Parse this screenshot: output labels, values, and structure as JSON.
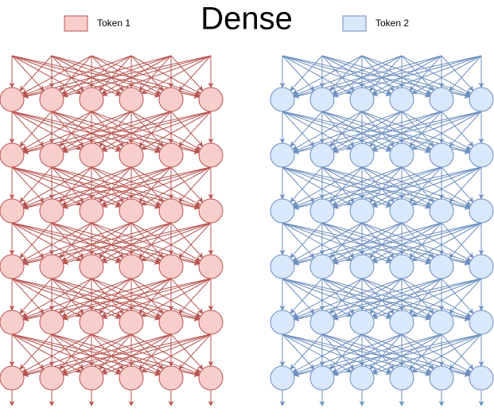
{
  "title": "Dense",
  "legend": {
    "items": [
      {
        "label": "Token 1"
      },
      {
        "label": "Token 2"
      }
    ]
  }
}
